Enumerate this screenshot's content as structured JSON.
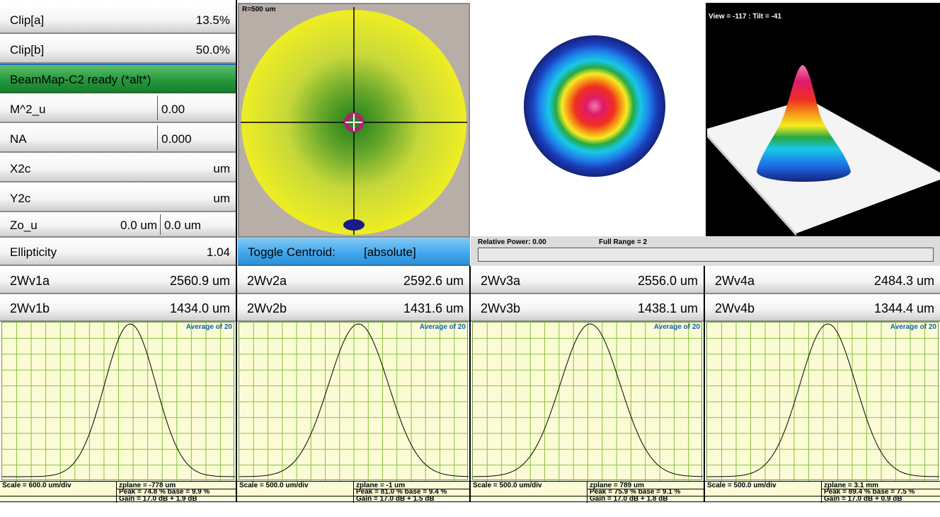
{
  "left_panel": {
    "clip_a": {
      "label": "Clip[a]",
      "value": "13.5%"
    },
    "clip_b": {
      "label": "Clip[b]",
      "value": "50.0%"
    },
    "status": "BeamMap-C2 ready (*alt*)",
    "m2u": {
      "label": "M^2_u",
      "value": "0.00"
    },
    "na": {
      "label": "NA",
      "value": "0.000"
    },
    "x2c": {
      "label": "X2c",
      "value": "um"
    },
    "y2c": {
      "label": "Y2c",
      "value": "um"
    },
    "zo": {
      "label": "Zo_u",
      "value1": "0.0 um",
      "value2": "0.0 um"
    },
    "ellipticity": {
      "label": "Ellipticity",
      "value": "1.04"
    }
  },
  "beam_map": {
    "radius_label": "R=500 um"
  },
  "toggle_centroid": {
    "label": "Toggle Centroid:",
    "mode": "[absolute]"
  },
  "view3d": {
    "label": "View = -117 : Tilt = -41"
  },
  "power": {
    "relative": "Relative Power: 0.00",
    "range": "Full Range = 2",
    "level": 0
  },
  "widths": [
    {
      "a_label": "2Wv1a",
      "a_value": "2560.9 um",
      "b_label": "2Wv1b",
      "b_value": "1434.0 um"
    },
    {
      "a_label": "2Wv2a",
      "a_value": "2592.6 um",
      "b_label": "2Wv2b",
      "b_value": "1431.6 um"
    },
    {
      "a_label": "2Wv3a",
      "a_value": "2556.0 um",
      "b_label": "2Wv3b",
      "b_value": "1438.1 um"
    },
    {
      "a_label": "2Wv4a",
      "a_value": "2484.3 um",
      "b_label": "2Wv4b",
      "b_value": "1344.4 um"
    }
  ],
  "profiles": [
    {
      "avg": "Average of 20",
      "scale": "Scale = 600.0 um/div",
      "zplane": "zplane = -778 um",
      "peak": "Peak = 74.8 %  base = 9.9 %",
      "gain": "Gain = 17.0 dB + 1.9 dB",
      "center": 0.55,
      "sigma": 0.11
    },
    {
      "avg": "Average of 20",
      "scale": "Scale = 500.0 um/div",
      "zplane": "zplane = -1 um",
      "peak": "Peak = 81.0 %  base = 9.4 %",
      "gain": "Gain = 17.0 dB + 1.5 dB",
      "center": 0.52,
      "sigma": 0.13
    },
    {
      "avg": "Average of 20",
      "scale": "Scale = 500.0 um/div",
      "zplane": "zplane = 789 um",
      "peak": "Peak = 75.9 %  base = 9.1 %",
      "gain": "Gain = 17.0 dB + 1.8 dB",
      "center": 0.51,
      "sigma": 0.13
    },
    {
      "avg": "Average of 20",
      "scale": "Scale = 500.0 um/div",
      "zplane": "zplane = 3.1 mm",
      "peak": "Peak = 89.4 %  base = 7.5 %",
      "gain": "Gain = 17.0 dB + 0.9 dB",
      "center": 0.52,
      "sigma": 0.12
    }
  ],
  "colors": {
    "status_green": "#22963a",
    "toggle_blue": "#3ea5ec",
    "grid": "#86c23a",
    "plot_bg": "#fbfcd6",
    "map_yellow": "#eeee22"
  }
}
